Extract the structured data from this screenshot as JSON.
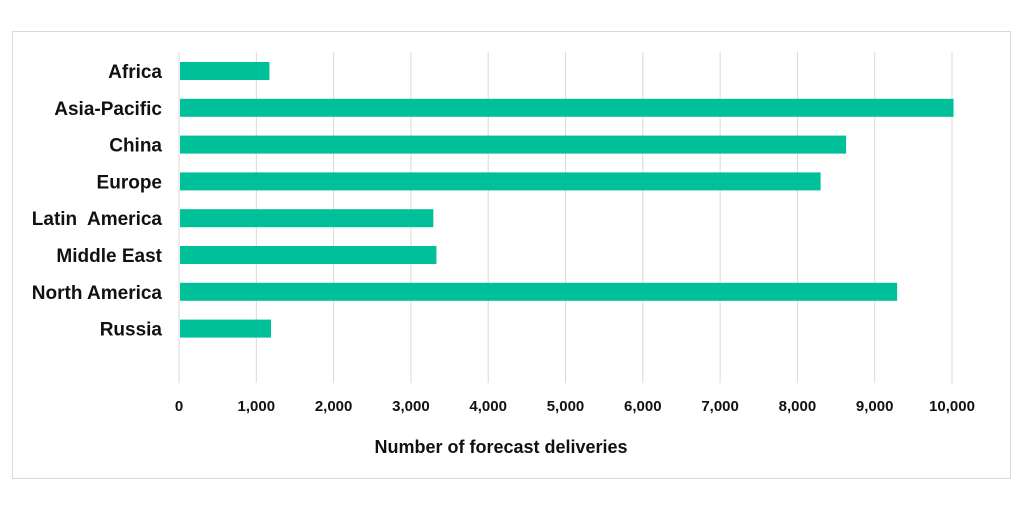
{
  "chart_data": {
    "type": "bar",
    "orientation": "horizontal",
    "categories": [
      "Africa",
      "Asia-Pacific",
      "China",
      "Europe",
      "Latin  America",
      "Middle East",
      "North America",
      "Russia"
    ],
    "values": [
      1170,
      10020,
      8630,
      8300,
      3290,
      3330,
      9290,
      1190
    ],
    "xlabel": "Number of forecast deliveries",
    "ylabel": "",
    "xlim": [
      0,
      10000
    ],
    "x_ticks": [
      "0",
      "1,000",
      "2,000",
      "3,000",
      "4,000",
      "5,000",
      "6,000",
      "7,000",
      "8,000",
      "9,000",
      "10,000"
    ],
    "grid": "vertical",
    "legend": "none",
    "bar_color": "#00c09a"
  }
}
